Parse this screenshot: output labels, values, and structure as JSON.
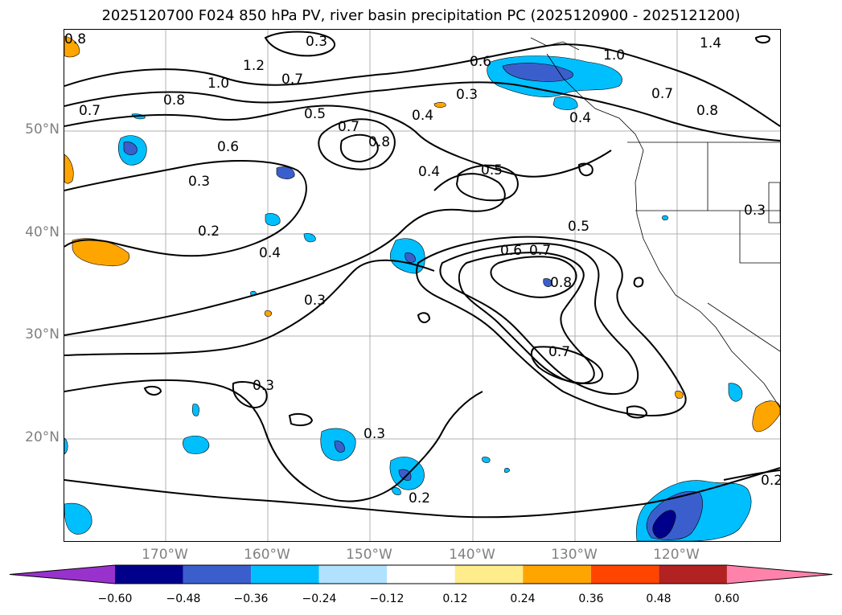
{
  "title": "2025120700 F024 850 hPa PV, river basin precipitation PC (2025120900 - 2025121200)",
  "lat_labels": [
    "50°N",
    "40°N",
    "30°N",
    "20°N"
  ],
  "lon_labels": [
    "170°W",
    "160°W",
    "150°W",
    "140°W",
    "130°W",
    "120°W"
  ],
  "contour_labels": [
    "0.8",
    "1.0",
    "1.2",
    "0.7",
    "0.8",
    "0.7",
    "0.5",
    "0.7",
    "0.8",
    "0.6",
    "0.3",
    "0.4",
    "0.4",
    "0.5",
    "0.3",
    "0.6",
    "0.3",
    "0.2",
    "0.4",
    "0.3",
    "1.4",
    "1.0",
    "0.7",
    "0.8",
    "0.4",
    "0.5",
    "0.6",
    "0.7",
    "0.8",
    "0.7",
    "0.3",
    "0.3",
    "0.2",
    "0.2",
    "0.3"
  ],
  "colorbar": {
    "ticks": [
      "−0.60",
      "−0.48",
      "−0.36",
      "−0.24",
      "−0.12",
      "0.12",
      "0.24",
      "0.36",
      "0.48",
      "0.60"
    ],
    "colors": [
      "#9932cc",
      "#00008b",
      "#3a5fcd",
      "#00bfff",
      "#b0e2ff",
      "#ffffff",
      "#ffec8b",
      "#ffa500",
      "#ff4500",
      "#b22222",
      "#ff82ab"
    ]
  },
  "fill_colors": {
    "light_blue": "#00bfff",
    "blue": "#3a5fcd",
    "dark_blue": "#00008b",
    "orange": "#ffa500"
  }
}
